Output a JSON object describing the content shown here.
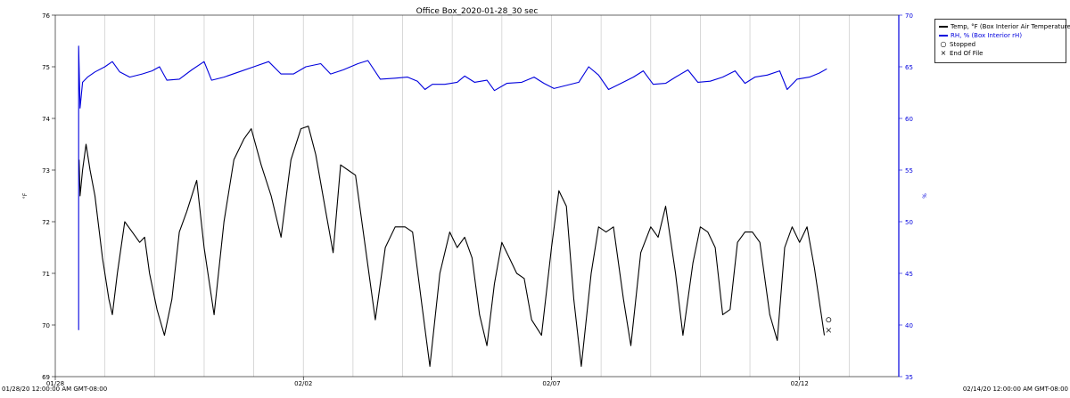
{
  "chart_data": {
    "type": "line",
    "title": "Office Box_2020-01-28_30 sec",
    "ylabel_left": "°F",
    "ylabel_right": "%",
    "left_axis": {
      "min": 69,
      "max": 76,
      "ticks": [
        "69",
        "70",
        "71",
        "72",
        "73",
        "74",
        "75",
        "76"
      ]
    },
    "right_axis": {
      "min": 35,
      "max": 70,
      "ticks": [
        "35",
        "40",
        "45",
        "50",
        "55",
        "60",
        "65",
        "70"
      ]
    },
    "x_axis": {
      "start_label": "01/28/20 12:00:00 AM GMT-08:00",
      "end_label": "02/14/20 12:00:00 AM GMT-08:00",
      "tick_labels": [
        {
          "label": "01/28",
          "day": 0
        },
        {
          "label": "02/02",
          "day": 5
        },
        {
          "label": "02/07",
          "day": 10
        },
        {
          "label": "02/12",
          "day": 15
        }
      ],
      "range_days": [
        0,
        17
      ],
      "gridlines": true
    },
    "legend": {
      "position": "top-right",
      "entries": [
        {
          "label": "Temp, °F (Box Interior Air Temperature)",
          "color": "#000000",
          "kind": "line"
        },
        {
          "label": "RH, % (Box Interior rH)",
          "color": "#0000dd",
          "kind": "line"
        },
        {
          "label": "Stopped",
          "color": "#000000",
          "kind": "circle"
        },
        {
          "label": "End Of File",
          "color": "#000000",
          "kind": "x"
        }
      ]
    },
    "series": [
      {
        "name": "Temp, °F (Box Interior Air Temperature)",
        "axis": "left",
        "color": "#000000",
        "points": [
          [
            0.48,
            73.2
          ],
          [
            0.5,
            72.5
          ],
          [
            0.55,
            73.0
          ],
          [
            0.62,
            73.5
          ],
          [
            0.7,
            73.0
          ],
          [
            0.8,
            72.5
          ],
          [
            0.95,
            71.3
          ],
          [
            1.08,
            70.5
          ],
          [
            1.15,
            70.2
          ],
          [
            1.25,
            71.0
          ],
          [
            1.4,
            72.0
          ],
          [
            1.55,
            71.8
          ],
          [
            1.7,
            71.6
          ],
          [
            1.8,
            71.7
          ],
          [
            1.9,
            71.0
          ],
          [
            2.05,
            70.3
          ],
          [
            2.2,
            69.8
          ],
          [
            2.35,
            70.5
          ],
          [
            2.5,
            71.8
          ],
          [
            2.65,
            72.2
          ],
          [
            2.85,
            72.8
          ],
          [
            3.0,
            71.5
          ],
          [
            3.2,
            70.2
          ],
          [
            3.4,
            72.0
          ],
          [
            3.6,
            73.2
          ],
          [
            3.8,
            73.6
          ],
          [
            3.95,
            73.8
          ],
          [
            4.15,
            73.1
          ],
          [
            4.35,
            72.5
          ],
          [
            4.55,
            71.7
          ],
          [
            4.75,
            73.2
          ],
          [
            4.95,
            73.8
          ],
          [
            5.1,
            73.85
          ],
          [
            5.25,
            73.3
          ],
          [
            5.45,
            72.2
          ],
          [
            5.6,
            71.4
          ],
          [
            5.75,
            73.1
          ],
          [
            5.9,
            73.0
          ],
          [
            6.05,
            72.9
          ],
          [
            6.25,
            71.5
          ],
          [
            6.45,
            70.1
          ],
          [
            6.65,
            71.5
          ],
          [
            6.85,
            71.9
          ],
          [
            7.05,
            71.9
          ],
          [
            7.2,
            71.8
          ],
          [
            7.4,
            70.3
          ],
          [
            7.55,
            69.2
          ],
          [
            7.75,
            71.0
          ],
          [
            7.95,
            71.8
          ],
          [
            8.1,
            71.5
          ],
          [
            8.25,
            71.7
          ],
          [
            8.4,
            71.3
          ],
          [
            8.55,
            70.2
          ],
          [
            8.7,
            69.6
          ],
          [
            8.85,
            70.8
          ],
          [
            9.0,
            71.6
          ],
          [
            9.15,
            71.3
          ],
          [
            9.3,
            71.0
          ],
          [
            9.45,
            70.9
          ],
          [
            9.6,
            70.1
          ],
          [
            9.8,
            69.8
          ],
          [
            10.0,
            71.5
          ],
          [
            10.15,
            72.6
          ],
          [
            10.3,
            72.3
          ],
          [
            10.45,
            70.5
          ],
          [
            10.6,
            69.2
          ],
          [
            10.8,
            71.0
          ],
          [
            10.95,
            71.9
          ],
          [
            11.1,
            71.8
          ],
          [
            11.25,
            71.9
          ],
          [
            11.45,
            70.5
          ],
          [
            11.6,
            69.6
          ],
          [
            11.8,
            71.4
          ],
          [
            12.0,
            71.9
          ],
          [
            12.15,
            71.7
          ],
          [
            12.3,
            72.3
          ],
          [
            12.5,
            71.0
          ],
          [
            12.65,
            69.8
          ],
          [
            12.85,
            71.2
          ],
          [
            13.0,
            71.9
          ],
          [
            13.15,
            71.8
          ],
          [
            13.3,
            71.5
          ],
          [
            13.45,
            70.2
          ],
          [
            13.6,
            70.3
          ],
          [
            13.75,
            71.6
          ],
          [
            13.9,
            71.8
          ],
          [
            14.05,
            71.8
          ],
          [
            14.2,
            71.6
          ],
          [
            14.4,
            70.2
          ],
          [
            14.55,
            69.7
          ],
          [
            14.7,
            71.5
          ],
          [
            14.85,
            71.9
          ],
          [
            15.0,
            71.6
          ],
          [
            15.15,
            71.9
          ],
          [
            15.3,
            71.1
          ],
          [
            15.5,
            69.8
          ]
        ]
      },
      {
        "name": "RH, % (Box Interior rH)",
        "axis": "right",
        "color": "#0000dd",
        "points": [
          [
            0.47,
            39.5
          ],
          [
            0.47,
            67.0
          ],
          [
            0.5,
            61.0
          ],
          [
            0.55,
            63.5
          ],
          [
            0.65,
            64.0
          ],
          [
            0.8,
            64.5
          ],
          [
            1.0,
            65.0
          ],
          [
            1.15,
            65.5
          ],
          [
            1.3,
            64.5
          ],
          [
            1.5,
            64.0
          ],
          [
            1.75,
            64.3
          ],
          [
            1.95,
            64.6
          ],
          [
            2.1,
            65.0
          ],
          [
            2.25,
            63.7
          ],
          [
            2.5,
            63.8
          ],
          [
            2.75,
            64.7
          ],
          [
            3.0,
            65.5
          ],
          [
            3.15,
            63.7
          ],
          [
            3.4,
            64.0
          ],
          [
            3.7,
            64.5
          ],
          [
            4.0,
            65.0
          ],
          [
            4.3,
            65.5
          ],
          [
            4.55,
            64.3
          ],
          [
            4.8,
            64.3
          ],
          [
            5.05,
            65.0
          ],
          [
            5.35,
            65.3
          ],
          [
            5.55,
            64.3
          ],
          [
            5.8,
            64.7
          ],
          [
            6.1,
            65.3
          ],
          [
            6.3,
            65.6
          ],
          [
            6.55,
            63.8
          ],
          [
            6.85,
            63.9
          ],
          [
            7.1,
            64.0
          ],
          [
            7.3,
            63.6
          ],
          [
            7.45,
            62.8
          ],
          [
            7.6,
            63.3
          ],
          [
            7.85,
            63.3
          ],
          [
            8.1,
            63.5
          ],
          [
            8.25,
            64.1
          ],
          [
            8.45,
            63.5
          ],
          [
            8.7,
            63.7
          ],
          [
            8.85,
            62.7
          ],
          [
            9.1,
            63.4
          ],
          [
            9.4,
            63.5
          ],
          [
            9.65,
            64.0
          ],
          [
            9.85,
            63.4
          ],
          [
            10.05,
            62.9
          ],
          [
            10.3,
            63.2
          ],
          [
            10.55,
            63.5
          ],
          [
            10.75,
            65.0
          ],
          [
            10.95,
            64.2
          ],
          [
            11.15,
            62.8
          ],
          [
            11.4,
            63.4
          ],
          [
            11.65,
            64.0
          ],
          [
            11.85,
            64.6
          ],
          [
            12.05,
            63.3
          ],
          [
            12.3,
            63.4
          ],
          [
            12.5,
            64.0
          ],
          [
            12.75,
            64.7
          ],
          [
            12.95,
            63.5
          ],
          [
            13.2,
            63.6
          ],
          [
            13.45,
            64.0
          ],
          [
            13.7,
            64.6
          ],
          [
            13.9,
            63.4
          ],
          [
            14.1,
            64.0
          ],
          [
            14.35,
            64.2
          ],
          [
            14.6,
            64.6
          ],
          [
            14.75,
            62.8
          ],
          [
            14.95,
            63.8
          ],
          [
            15.2,
            64.0
          ],
          [
            15.4,
            64.4
          ],
          [
            15.55,
            64.8
          ]
        ]
      }
    ],
    "markers": [
      {
        "label": "Stopped",
        "x": 15.55,
        "y": 70.1
      },
      {
        "label": "End Of File",
        "x": 15.55,
        "y": 69.95
      }
    ]
  }
}
